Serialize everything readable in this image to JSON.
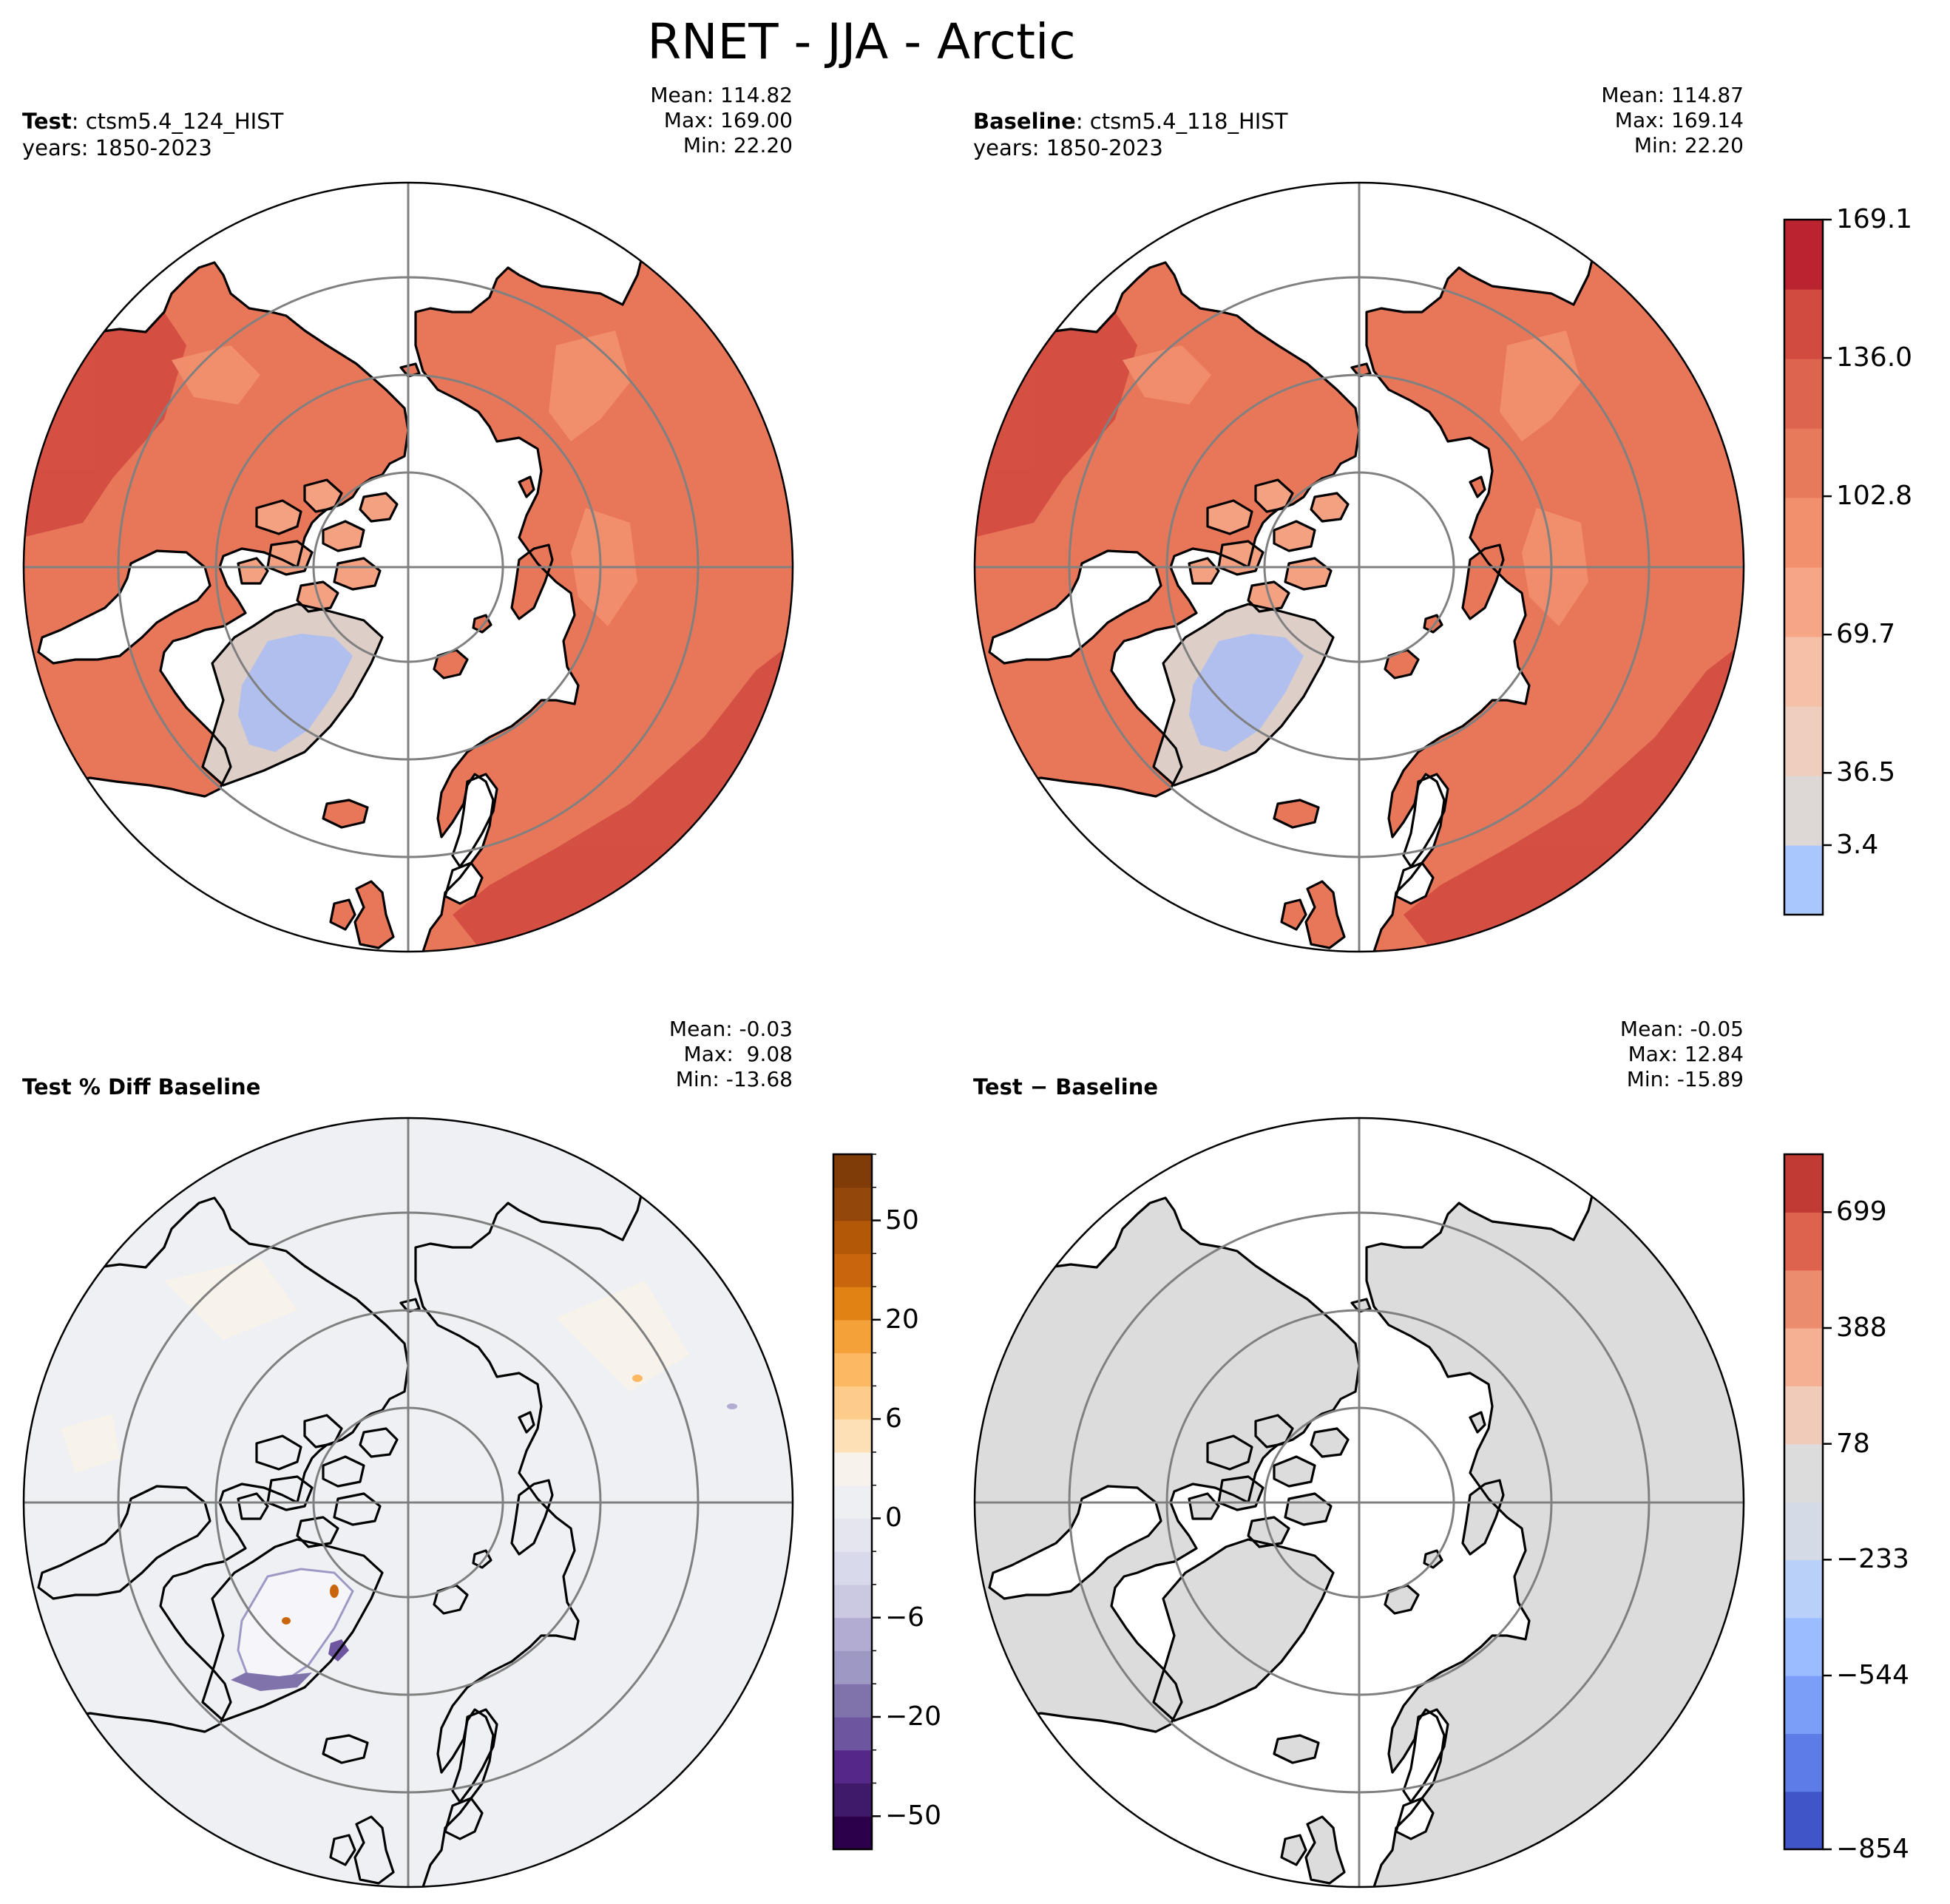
{
  "title": "RNET - JJA - Arctic",
  "panels": [
    {
      "id": "test",
      "label_bold": "Test",
      "label_rest": ": ctsm5.4_124_HIST",
      "years": "years: 1850-2023",
      "mean": "Mean: 114.82",
      "max": "Max: 169.00",
      "min": "Min: 22.20",
      "field": "rnet"
    },
    {
      "id": "baseline",
      "label_bold": "Baseline",
      "label_rest": ": ctsm5.4_118_HIST",
      "years": "years: 1850-2023",
      "mean": "Mean: 114.87",
      "max": "Max: 169.14",
      "min": "Min: 22.20",
      "field": "rnet"
    },
    {
      "id": "pctdiff",
      "label_bold": "Test % Diff Baseline",
      "label_rest": "",
      "years": "",
      "mean": "Mean: -0.03",
      "max": "Max:  9.08",
      "min": "Min: -13.68",
      "field": "pct"
    },
    {
      "id": "diff",
      "label_bold": "Test − Baseline",
      "label_rest": "",
      "years": "",
      "mean": "Mean: -0.05",
      "max": "Max: 12.84",
      "min": "Min: -15.89",
      "field": "diff"
    }
  ],
  "colorbars": {
    "rnet": {
      "ticks": [
        "169.1",
        "136.0",
        "102.8",
        "69.7",
        "36.5",
        "3.4"
      ],
      "colors": [
        "#aac7fd",
        "#ddd8d5",
        "#efcebd",
        "#f5c0a7",
        "#f6a686",
        "#f2906e",
        "#e87a5c",
        "#dd654e",
        "#d24b40",
        "#bb2330"
      ]
    },
    "pct": {
      "ticks": [
        "50",
        "20",
        "6",
        "0",
        "−6",
        "−20",
        "−50"
      ],
      "colors": [
        "#2d004b",
        "#3f1a6a",
        "#542788",
        "#6e55a0",
        "#8073ac",
        "#9e98c5",
        "#b2abd2",
        "#cbc8e1",
        "#d8daeb",
        "#e4e5ef",
        "#eeeff3",
        "#f7f2ea",
        "#fee0b6",
        "#fdcb8a",
        "#fdb863",
        "#f4a13a",
        "#e08214",
        "#c9650c",
        "#b35806",
        "#93470a",
        "#7f3b08"
      ]
    },
    "diff": {
      "ticks": [
        "699",
        "388",
        "78",
        "−233",
        "−544",
        "−854"
      ],
      "colors": [
        "#4055c8",
        "#5d7ce6",
        "#7b9ff9",
        "#9bbcff",
        "#b9d0f9",
        "#d4dbe6",
        "#dcdcdc",
        "#f0cbb9",
        "#f5b094",
        "#ec8c6f",
        "#dd634e",
        "#c13b35"
      ]
    }
  },
  "legend_colors": {
    "ocean": "#ffffff",
    "coast": "#000000",
    "grid": "#808080",
    "greenland_ice": "#aac7fd",
    "neutral_gray": "#dcdcdc"
  }
}
